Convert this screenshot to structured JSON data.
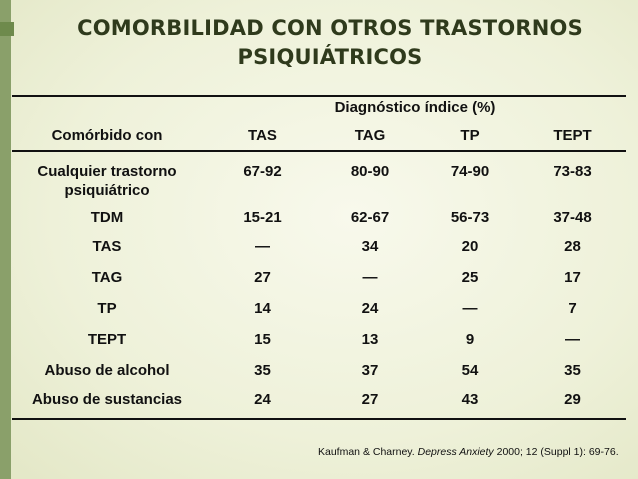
{
  "title_line1": "COMORBILIDAD CON OTROS TRASTORNOS",
  "title_line2": "PSIQUIÁTRICOS",
  "table": {
    "group_header": "Diagnóstico índice (%)",
    "headers": [
      "Comórbido con",
      "TAS",
      "TAG",
      "TP",
      "TEPT"
    ],
    "rows": [
      {
        "label_line1": "Cualquier trastorno",
        "label_line2": "psiquiátrico",
        "values": [
          "67-92",
          "80-90",
          "74-90",
          "73-83"
        ]
      },
      {
        "label_line1": "TDM",
        "values": [
          "15-21",
          "62-67",
          "56-73",
          "37-48"
        ]
      },
      {
        "label_line1": "TAS",
        "values": [
          "—",
          "34",
          "20",
          "28"
        ]
      },
      {
        "label_line1": "TAG",
        "values": [
          "27",
          "—",
          "25",
          "17"
        ]
      },
      {
        "label_line1": "TP",
        "values": [
          "14",
          "24",
          "—",
          "7"
        ]
      },
      {
        "label_line1": "TEPT",
        "values": [
          "15",
          "13",
          "9",
          "—"
        ]
      },
      {
        "label_line1": "Abuso de alcohol",
        "values": [
          "35",
          "37",
          "54",
          "35"
        ]
      },
      {
        "label_line1": "Abuso de sustancias",
        "values": [
          "24",
          "27",
          "43",
          "29"
        ]
      }
    ]
  },
  "citation": {
    "authors": "Kaufman & Charney.",
    "journal": "Depress Anxiety",
    "details": "2000; 12 (Suppl 1): 69-76."
  },
  "colors": {
    "background": "#eef1d9",
    "left_bar": "#8aa06a",
    "title": "#2f3a1c"
  }
}
